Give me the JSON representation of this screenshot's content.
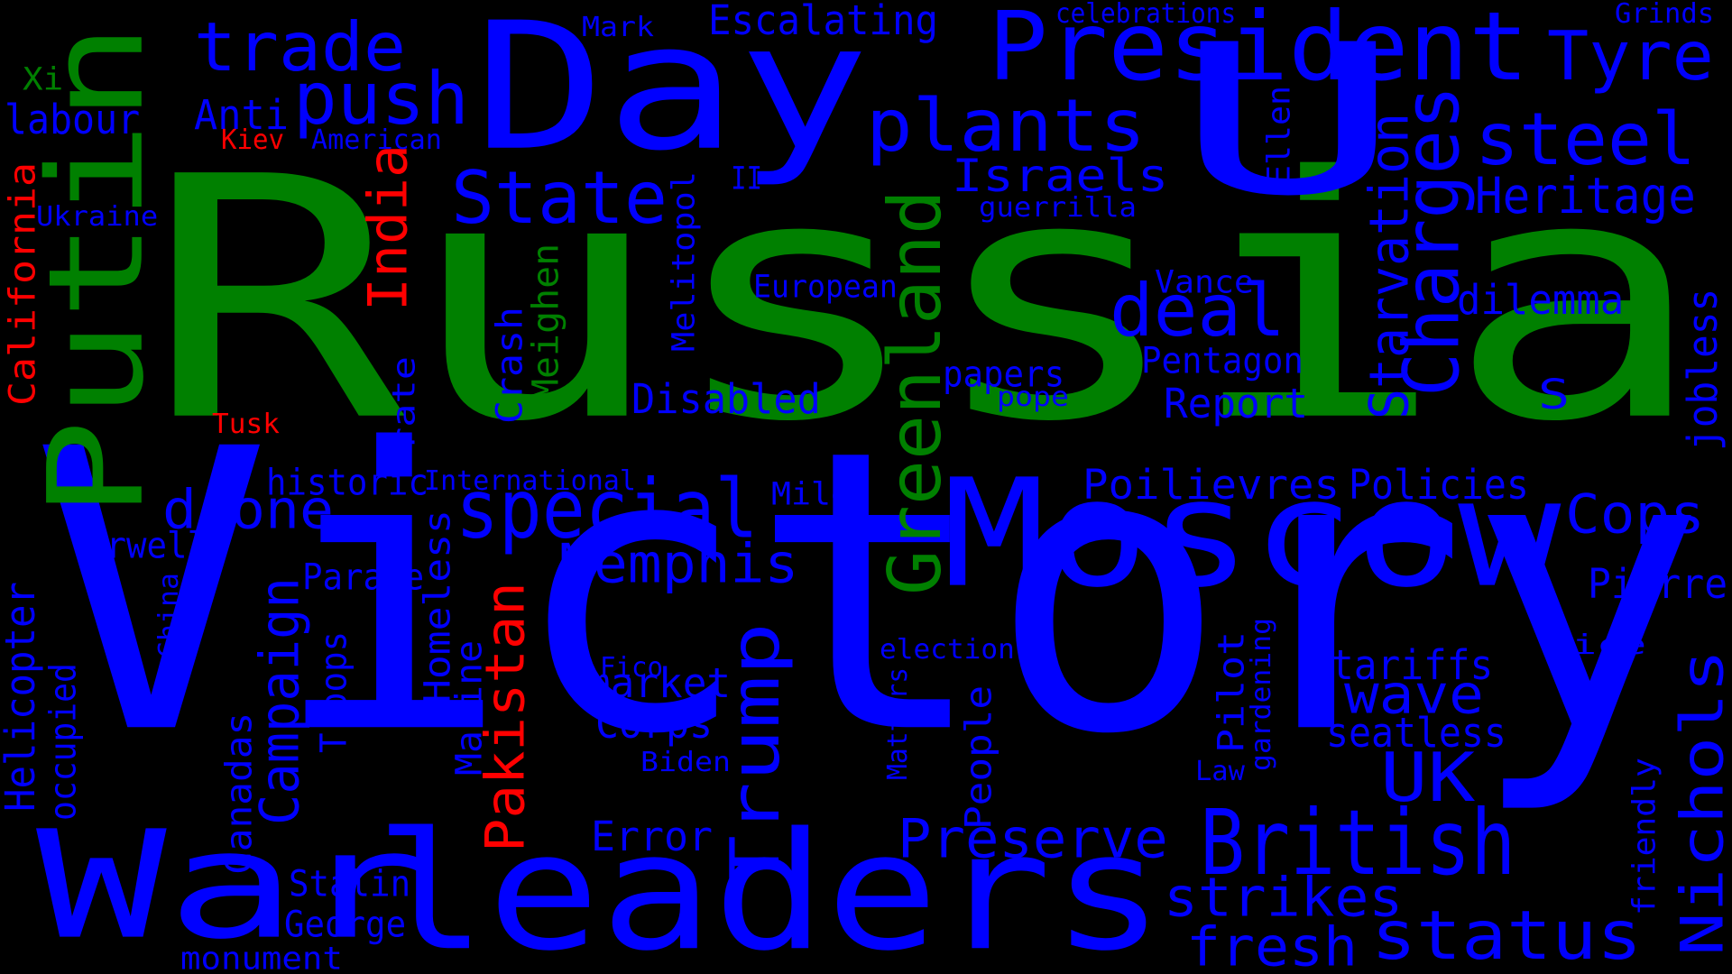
{
  "colors": {
    "background": "#000000",
    "blue": "#0000ff",
    "green": "#008000",
    "red": "#ff0000"
  },
  "words": [
    {
      "text": "Victory",
      "color": "blue",
      "rot": false
    },
    {
      "text": "Russia",
      "color": "green",
      "rot": false
    },
    {
      "text": "Day",
      "color": "blue",
      "rot": false
    },
    {
      "text": "U",
      "color": "blue",
      "rot": false
    },
    {
      "text": "leaders",
      "color": "blue",
      "rot": false
    },
    {
      "text": "Moscow",
      "color": "blue",
      "rot": false
    },
    {
      "text": "Putin",
      "color": "green",
      "rot": true
    },
    {
      "text": "War",
      "color": "blue",
      "rot": false
    },
    {
      "text": "President",
      "color": "blue",
      "rot": false
    },
    {
      "text": "Greenland",
      "color": "green",
      "rot": true
    },
    {
      "text": "special",
      "color": "blue",
      "rot": false
    },
    {
      "text": "British",
      "color": "blue",
      "rot": false
    },
    {
      "text": "Trump",
      "color": "blue",
      "rot": true
    },
    {
      "text": "status",
      "color": "blue",
      "rot": false
    },
    {
      "text": "Nichols",
      "color": "blue",
      "rot": true
    },
    {
      "text": "Charges",
      "color": "blue",
      "rot": true
    },
    {
      "text": "steel",
      "color": "blue",
      "rot": false
    },
    {
      "text": "Tyre",
      "color": "blue",
      "rot": false
    },
    {
      "text": "plants",
      "color": "blue",
      "rot": false
    },
    {
      "text": "push",
      "color": "blue",
      "rot": false
    },
    {
      "text": "trade",
      "color": "blue",
      "rot": false
    },
    {
      "text": "State",
      "color": "blue",
      "rot": false
    },
    {
      "text": "deal",
      "color": "blue",
      "rot": false
    },
    {
      "text": "Heritage",
      "color": "blue",
      "rot": false
    },
    {
      "text": "Memphis",
      "color": "blue",
      "rot": false
    },
    {
      "text": "Preserve",
      "color": "blue",
      "rot": false
    },
    {
      "text": "strikes",
      "color": "blue",
      "rot": false
    },
    {
      "text": "fresh",
      "color": "blue",
      "rot": false
    },
    {
      "text": "UK",
      "color": "blue",
      "rot": false
    },
    {
      "text": "drone",
      "color": "blue",
      "rot": false
    },
    {
      "text": "Cops",
      "color": "blue",
      "rot": false
    },
    {
      "text": "wave",
      "color": "blue",
      "rot": false
    },
    {
      "text": "Starvation",
      "color": "blue",
      "rot": true
    },
    {
      "text": "Pakistan",
      "color": "red",
      "rot": true
    },
    {
      "text": "Campaign",
      "color": "blue",
      "rot": true
    },
    {
      "text": "Israels",
      "color": "blue",
      "rot": false
    },
    {
      "text": "Disabled",
      "color": "blue",
      "rot": false
    },
    {
      "text": "Report",
      "color": "blue",
      "rot": false
    },
    {
      "text": "dilemma",
      "color": "blue",
      "rot": false
    },
    {
      "text": "Pierre",
      "color": "blue",
      "rot": false
    },
    {
      "text": "India",
      "color": "red",
      "rot": true
    },
    {
      "text": "tariffs",
      "color": "blue",
      "rot": false
    },
    {
      "text": "seatless",
      "color": "blue",
      "rot": false
    },
    {
      "text": "Poilievres",
      "color": "blue",
      "rot": false
    },
    {
      "text": "Policies",
      "color": "blue",
      "rot": false
    },
    {
      "text": "market",
      "color": "blue",
      "rot": false
    },
    {
      "text": "Corps",
      "color": "blue",
      "rot": false
    },
    {
      "text": "Error",
      "color": "blue",
      "rot": false
    },
    {
      "text": "Escalating",
      "color": "blue",
      "rot": false
    },
    {
      "text": "labour",
      "color": "blue",
      "rot": false
    },
    {
      "text": "Anti",
      "color": "blue",
      "rot": false
    },
    {
      "text": "Homeless",
      "color": "blue",
      "rot": true
    },
    {
      "text": "Marine",
      "color": "blue",
      "rot": true
    },
    {
      "text": "Helicopter",
      "color": "blue",
      "rot": true
    },
    {
      "text": "California",
      "color": "red",
      "rot": true
    },
    {
      "text": "Crash",
      "color": "blue",
      "rot": true
    },
    {
      "text": "Meighen",
      "color": "green",
      "rot": true
    },
    {
      "text": "Stalin",
      "color": "blue",
      "rot": false
    },
    {
      "text": "George",
      "color": "blue",
      "rot": false
    },
    {
      "text": "Parade",
      "color": "blue",
      "rot": false
    },
    {
      "text": "Orwell",
      "color": "blue",
      "rot": false
    },
    {
      "text": "historic",
      "color": "blue",
      "rot": false
    },
    {
      "text": "Miles",
      "color": "blue",
      "rot": false
    },
    {
      "text": "papers",
      "color": "blue",
      "rot": false
    },
    {
      "text": "Pentagon",
      "color": "blue",
      "rot": false
    },
    {
      "text": "Pilot",
      "color": "blue",
      "rot": true
    },
    {
      "text": "People",
      "color": "blue",
      "rot": true
    },
    {
      "text": "Canadas",
      "color": "blue",
      "rot": true
    },
    {
      "text": "Troops",
      "color": "blue",
      "rot": true
    },
    {
      "text": "occupied",
      "color": "blue",
      "rot": true
    },
    {
      "text": "monument",
      "color": "blue",
      "rot": false
    },
    {
      "text": "rate",
      "color": "blue",
      "rot": true
    },
    {
      "text": "Melitopol",
      "color": "blue",
      "rot": true
    },
    {
      "text": "European",
      "color": "blue",
      "rot": false
    },
    {
      "text": "S",
      "color": "blue",
      "rot": false
    },
    {
      "text": "Ellen",
      "color": "blue",
      "rot": true
    },
    {
      "text": "guerrilla",
      "color": "blue",
      "rot": false
    },
    {
      "text": "Vance",
      "color": "blue",
      "rot": false
    },
    {
      "text": "pope",
      "color": "blue",
      "rot": false
    },
    {
      "text": "jobless",
      "color": "blue",
      "rot": true
    },
    {
      "text": "friendly",
      "color": "blue",
      "rot": true
    },
    {
      "text": "Vice",
      "color": "blue",
      "rot": false
    },
    {
      "text": "election",
      "color": "blue",
      "rot": false
    },
    {
      "text": "Matters",
      "color": "blue",
      "rot": true
    },
    {
      "text": "Fico",
      "color": "blue",
      "rot": false
    },
    {
      "text": "Biden",
      "color": "blue",
      "rot": false
    },
    {
      "text": "Law",
      "color": "blue",
      "rot": false
    },
    {
      "text": "gardening",
      "color": "blue",
      "rot": true
    },
    {
      "text": "China",
      "color": "blue",
      "rot": true
    },
    {
      "text": "International",
      "color": "blue",
      "rot": false
    },
    {
      "text": "Ukraine",
      "color": "blue",
      "rot": false
    },
    {
      "text": "American",
      "color": "blue",
      "rot": false
    },
    {
      "text": "Kiev",
      "color": "red",
      "rot": false
    },
    {
      "text": "Tusk",
      "color": "red",
      "rot": false
    },
    {
      "text": "Xi",
      "color": "green",
      "rot": false
    },
    {
      "text": "Mark",
      "color": "blue",
      "rot": false
    },
    {
      "text": "celebrations",
      "color": "blue",
      "rot": false
    },
    {
      "text": "Grinds",
      "color": "blue",
      "rot": false
    },
    {
      "text": "II",
      "color": "blue",
      "rot": false
    }
  ]
}
